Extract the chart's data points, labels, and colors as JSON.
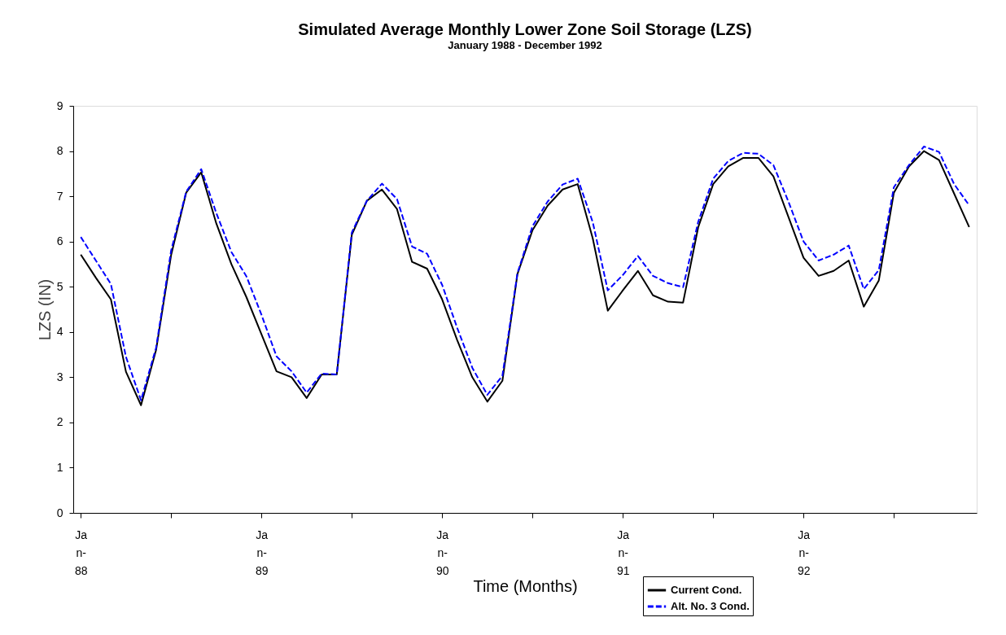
{
  "chart_data": {
    "type": "line",
    "title": "Simulated Average Monthly Lower Zone Soil Storage (LZS)",
    "subtitle": "January 1988 - December 1992",
    "xlabel": "Time (Months)",
    "ylabel": "LZS (IN)",
    "categories": [
      "Jan-88",
      null,
      null,
      null,
      null,
      null,
      null,
      null,
      null,
      null,
      null,
      null,
      "Jan-89",
      null,
      null,
      null,
      null,
      null,
      null,
      null,
      null,
      null,
      null,
      null,
      "Jan-90",
      null,
      null,
      null,
      null,
      null,
      null,
      null,
      null,
      null,
      null,
      null,
      "Jan-91",
      null,
      null,
      null,
      null,
      null,
      null,
      null,
      null,
      null,
      null,
      null,
      "Jan-92",
      null,
      null,
      null,
      null,
      null,
      null,
      null,
      null,
      null,
      null,
      null
    ],
    "ylim": [
      0,
      9
    ],
    "yticks": [
      0,
      1,
      2,
      3,
      4,
      5,
      6,
      7,
      8,
      9
    ],
    "grid": false,
    "legend": "bottom right",
    "marker": "none",
    "series": [
      {
        "name": "Current Cond.",
        "color": "#000000",
        "line_style": "solid",
        "values": [
          5.71,
          5.2,
          4.72,
          3.12,
          2.38,
          3.6,
          5.7,
          7.08,
          7.53,
          6.4,
          5.5,
          4.77,
          3.95,
          3.13,
          3.0,
          2.54,
          3.06,
          3.06,
          6.15,
          6.9,
          7.15,
          6.72,
          5.55,
          5.4,
          4.72,
          3.82,
          3.0,
          2.46,
          2.92,
          5.28,
          6.25,
          6.79,
          7.15,
          7.27,
          6.07,
          4.47,
          4.92,
          5.35,
          4.81,
          4.67,
          4.65,
          6.31,
          7.27,
          7.66,
          7.85,
          7.85,
          7.44,
          6.54,
          5.64,
          5.24,
          5.35,
          5.58,
          4.56,
          5.14,
          7.08,
          7.66,
          8.0,
          7.8,
          7.06,
          6.32
        ]
      },
      {
        "name": "Alt. No. 3 Cond.",
        "color": "#0000ff",
        "line_style": "dashed",
        "values": [
          6.1,
          5.58,
          5.06,
          3.45,
          2.49,
          3.65,
          5.8,
          7.1,
          7.6,
          6.63,
          5.77,
          5.23,
          4.38,
          3.46,
          3.13,
          2.66,
          3.08,
          3.06,
          6.2,
          6.9,
          7.28,
          6.94,
          5.89,
          5.73,
          5.04,
          4.09,
          3.21,
          2.61,
          3.03,
          5.3,
          6.34,
          6.88,
          7.26,
          7.39,
          6.43,
          4.92,
          5.26,
          5.68,
          5.24,
          5.08,
          4.99,
          6.43,
          7.39,
          7.78,
          7.96,
          7.94,
          7.69,
          6.88,
          6.0,
          5.58,
          5.71,
          5.91,
          4.95,
          5.37,
          7.2,
          7.69,
          8.1,
          7.98,
          7.27,
          6.8
        ]
      }
    ]
  }
}
